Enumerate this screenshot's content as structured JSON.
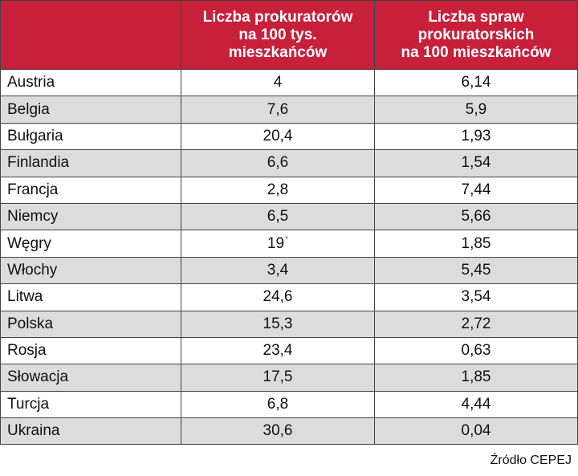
{
  "table": {
    "headers": [
      "",
      "Liczba prokuratorów\nna 100 tys.\nmieszkańców",
      "Liczba spraw\nprokuratorskich\nna 100 mieszkańców"
    ],
    "rows": [
      {
        "country": "Austria",
        "prosecutors": "4",
        "cases": "6,14"
      },
      {
        "country": "Belgia",
        "prosecutors": "7,6",
        "cases": "5,9"
      },
      {
        "country": "Bułgaria",
        "prosecutors": "20,4",
        "cases": "1,93"
      },
      {
        "country": "Finlandia",
        "prosecutors": "6,6",
        "cases": "1,54"
      },
      {
        "country": "Francja",
        "prosecutors": "2,8",
        "cases": "7,44"
      },
      {
        "country": "Niemcy",
        "prosecutors": "6,5",
        "cases": "5,66"
      },
      {
        "country": "Węgry",
        "prosecutors": "19",
        "cases": "1,85",
        "mark": "*"
      },
      {
        "country": "Włochy",
        "prosecutors": "3,4",
        "cases": "5,45"
      },
      {
        "country": "Litwa",
        "prosecutors": "24,6",
        "cases": "3,54"
      },
      {
        "country": "Polska",
        "prosecutors": "15,3",
        "cases": "2,72"
      },
      {
        "country": "Rosja",
        "prosecutors": "23,4",
        "cases": "0,63"
      },
      {
        "country": "Słowacja",
        "prosecutors": "17,5",
        "cases": "1,85"
      },
      {
        "country": "Turcja",
        "prosecutors": "6,8",
        "cases": "4,44"
      },
      {
        "country": "Ukraina",
        "prosecutors": "30,6",
        "cases": "0,04"
      }
    ]
  },
  "source": "Źródło CEPEJ",
  "colors": {
    "header_bg": "#c8203a",
    "stripe": "#dcdcdc"
  }
}
